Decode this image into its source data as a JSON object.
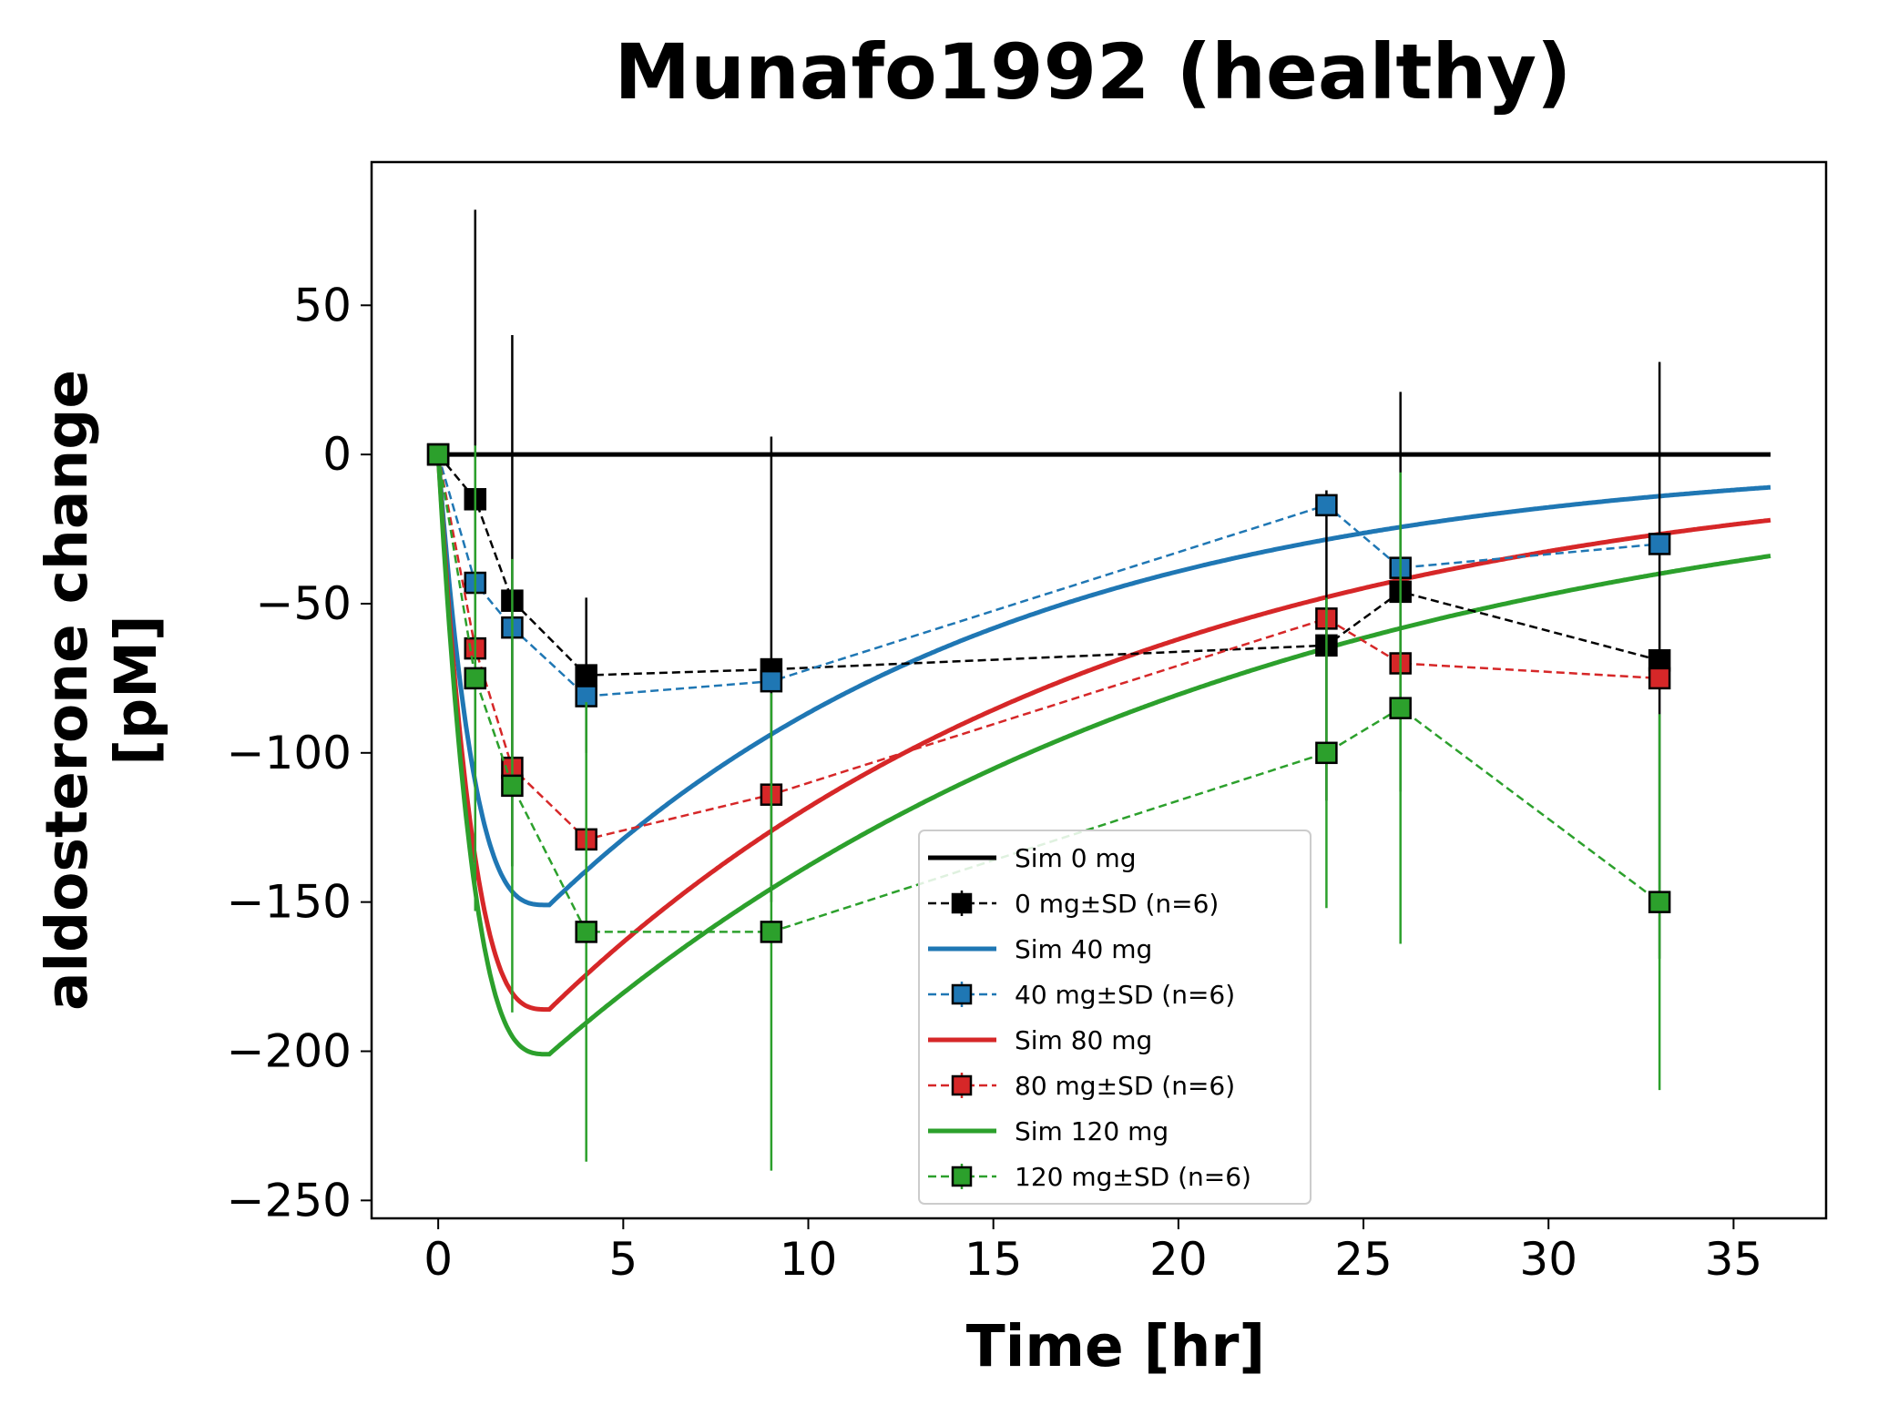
{
  "chart_data": {
    "type": "line",
    "title": "Munafo1992 (healthy)",
    "xlabel": "Time [hr]",
    "ylabel_line1": "aldosterone change",
    "ylabel_line2": "[pM]",
    "xlim": [
      -1.8,
      37.5
    ],
    "ylim": [
      -256,
      98
    ],
    "xticks": [
      0,
      5,
      10,
      15,
      20,
      25,
      30,
      35
    ],
    "yticks": [
      -250,
      -200,
      -150,
      -100,
      -50,
      0,
      50
    ],
    "grid": false,
    "legend_position": "lower-center",
    "colors": {
      "0mg": "#000000",
      "40mg": "#1f77b4",
      "80mg": "#d62728",
      "120mg": "#2ca02c"
    },
    "series": [
      {
        "key": "0mg",
        "sim_name": "Sim 0 mg",
        "data_name": "0 mg±SD (n=6)",
        "sim_peak": {
          "tpeak": 0,
          "ymin": 0,
          "tend": 36,
          "yend": 0
        },
        "data": [
          {
            "x": 0,
            "y": 0,
            "sd": 0
          },
          {
            "x": 1,
            "y": -15,
            "sd": 97
          },
          {
            "x": 2,
            "y": -49,
            "sd": 89
          },
          {
            "x": 4,
            "y": -74,
            "sd": 26
          },
          {
            "x": 9,
            "y": -72,
            "sd": 78
          },
          {
            "x": 24,
            "y": -64,
            "sd": 52
          },
          {
            "x": 26,
            "y": -46,
            "sd": 67
          },
          {
            "x": 33,
            "y": -69,
            "sd": 100
          }
        ]
      },
      {
        "key": "40mg",
        "sim_name": "Sim 40 mg",
        "data_name": "40 mg±SD (n=6)",
        "sim_peak": {
          "tpeak": 3.0,
          "ymin": -151,
          "tend": 36,
          "yend": -11
        },
        "data": [
          {
            "x": 0,
            "y": 0,
            "sd": 0
          },
          {
            "x": 1,
            "y": -43,
            "sd": 0
          },
          {
            "x": 2,
            "y": -58,
            "sd": 0
          },
          {
            "x": 4,
            "y": -81,
            "sd": 0
          },
          {
            "x": 9,
            "y": -76,
            "sd": 0
          },
          {
            "x": 24,
            "y": -17,
            "sd": 0
          },
          {
            "x": 26,
            "y": -38,
            "sd": 0
          },
          {
            "x": 33,
            "y": -30,
            "sd": 0
          }
        ]
      },
      {
        "key": "80mg",
        "sim_name": "Sim 80 mg",
        "data_name": "80 mg±SD (n=6)",
        "sim_peak": {
          "tpeak": 3.0,
          "ymin": -186,
          "tend": 36,
          "yend": -22
        },
        "data": [
          {
            "x": 0,
            "y": 0,
            "sd": 0
          },
          {
            "x": 1,
            "y": -65,
            "sd": 0
          },
          {
            "x": 2,
            "y": -105,
            "sd": 0
          },
          {
            "x": 4,
            "y": -129,
            "sd": 0
          },
          {
            "x": 9,
            "y": -114,
            "sd": 0
          },
          {
            "x": 24,
            "y": -55,
            "sd": 0
          },
          {
            "x": 26,
            "y": -70,
            "sd": 0
          },
          {
            "x": 33,
            "y": -75,
            "sd": 0
          }
        ]
      },
      {
        "key": "120mg",
        "sim_name": "Sim 120 mg",
        "data_name": "120 mg±SD (n=6)",
        "sim_peak": {
          "tpeak": 3.0,
          "ymin": -201,
          "tend": 36,
          "yend": -34
        },
        "data": [
          {
            "x": 0,
            "y": 0,
            "sd": 0
          },
          {
            "x": 1,
            "y": -75,
            "sd": 78
          },
          {
            "x": 2,
            "y": -111,
            "sd": 76
          },
          {
            "x": 4,
            "y": -160,
            "sd": 77
          },
          {
            "x": 9,
            "y": -160,
            "sd": 80
          },
          {
            "x": 24,
            "y": -100,
            "sd": 52
          },
          {
            "x": 26,
            "y": -85,
            "sd": 79
          },
          {
            "x": 33,
            "y": -150,
            "sd": 63
          }
        ]
      }
    ]
  }
}
